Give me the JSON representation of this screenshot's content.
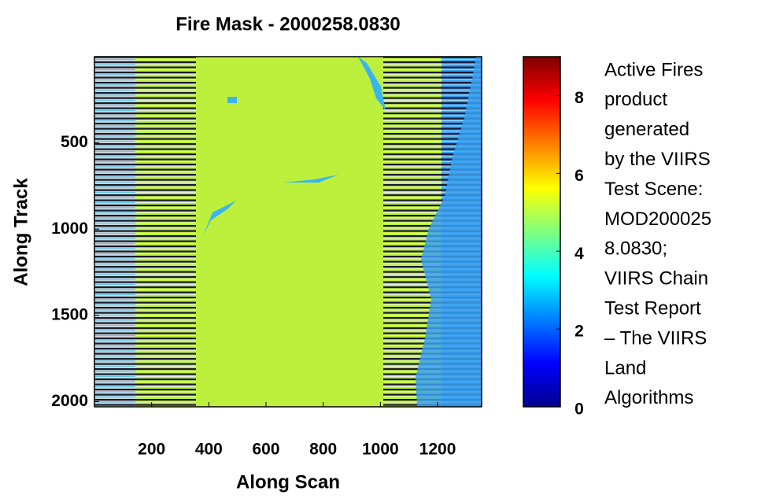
{
  "chart_data": {
    "type": "image",
    "title": "Fire Mask - 2000258.0830",
    "x_label": "Along Scan",
    "y_label": "Along Track",
    "xlim": [
      0,
      1354
    ],
    "xticks": [
      200,
      400,
      600,
      800,
      1000,
      1200
    ],
    "ylim": [
      0,
      2030
    ],
    "yticks": [
      500,
      1000,
      1500,
      2000
    ],
    "y_reversed": true,
    "colormap": "jet",
    "clim": [
      0,
      9
    ],
    "cticks": [
      0,
      2,
      4,
      6,
      8
    ],
    "caption_lines": [
      "Active Fires",
      "product",
      "generated",
      "by the VIIRS",
      "Test Scene:",
      "MOD200025",
      "8.0830;",
      "VIIRS Chain",
      "Test Report",
      "– The VIIRS",
      "Land",
      "Algorithms"
    ]
  }
}
